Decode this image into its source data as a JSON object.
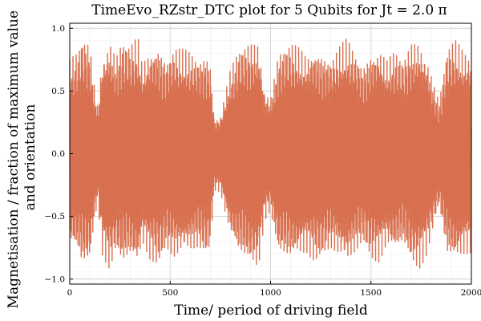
{
  "chart_data": {
    "type": "line",
    "title": "TimeEvo_RZstr_DTC plot for 5 Qubits for Jt = 2.0 π",
    "xlabel": "Time/ period of driving field",
    "ylabel_lines": [
      "Magnetisation / fraction of maximum value",
      "and orientation"
    ],
    "xlim": [
      0,
      2000
    ],
    "ylim": [
      -1.04,
      1.04
    ],
    "x_ticks": [
      0,
      500,
      1000,
      1500,
      2000
    ],
    "x_tick_labels": [
      "0",
      "500",
      "1000",
      "1500",
      "2000"
    ],
    "y_ticks": [
      -1.0,
      -0.5,
      0.0,
      0.5,
      1.0
    ],
    "y_tick_labels": [
      "−1.0",
      "−0.5",
      "0.0",
      "0.5",
      "1.0"
    ],
    "grid": true,
    "legend": false,
    "series": [
      {
        "color": "#d8704f",
        "x_start": 0,
        "x_step": 1,
        "n_points": 2001,
        "envelope_x": [
          0,
          40,
          60,
          80,
          100,
          125,
          140,
          160,
          200,
          230,
          260,
          300,
          340,
          360,
          400,
          440,
          480,
          520,
          560,
          600,
          640,
          680,
          700,
          720,
          750,
          800,
          840,
          880,
          940,
          970,
          1000,
          1040,
          1100,
          1140,
          1180,
          1220,
          1260,
          1300,
          1340,
          1380,
          1420,
          1460,
          1500,
          1540,
          1580,
          1620,
          1660,
          1700,
          1740,
          1780,
          1820,
          1840,
          1880,
          1920,
          1960,
          2000
        ],
        "envelope_y": [
          0.78,
          0.85,
          0.96,
          0.95,
          0.92,
          0.55,
          0.4,
          0.82,
          0.97,
          0.82,
          0.95,
          0.9,
          0.97,
          0.75,
          0.88,
          0.93,
          0.8,
          0.89,
          0.86,
          0.84,
          0.8,
          0.85,
          0.78,
          0.3,
          0.32,
          0.7,
          0.86,
          0.92,
          0.95,
          0.55,
          0.48,
          0.85,
          0.92,
          0.88,
          0.83,
          0.9,
          0.86,
          0.8,
          0.88,
          0.95,
          0.85,
          0.75,
          0.87,
          0.9,
          0.78,
          0.85,
          0.78,
          0.93,
          0.96,
          0.82,
          0.55,
          0.45,
          0.88,
          0.94,
          0.86,
          0.82
        ]
      }
    ]
  }
}
